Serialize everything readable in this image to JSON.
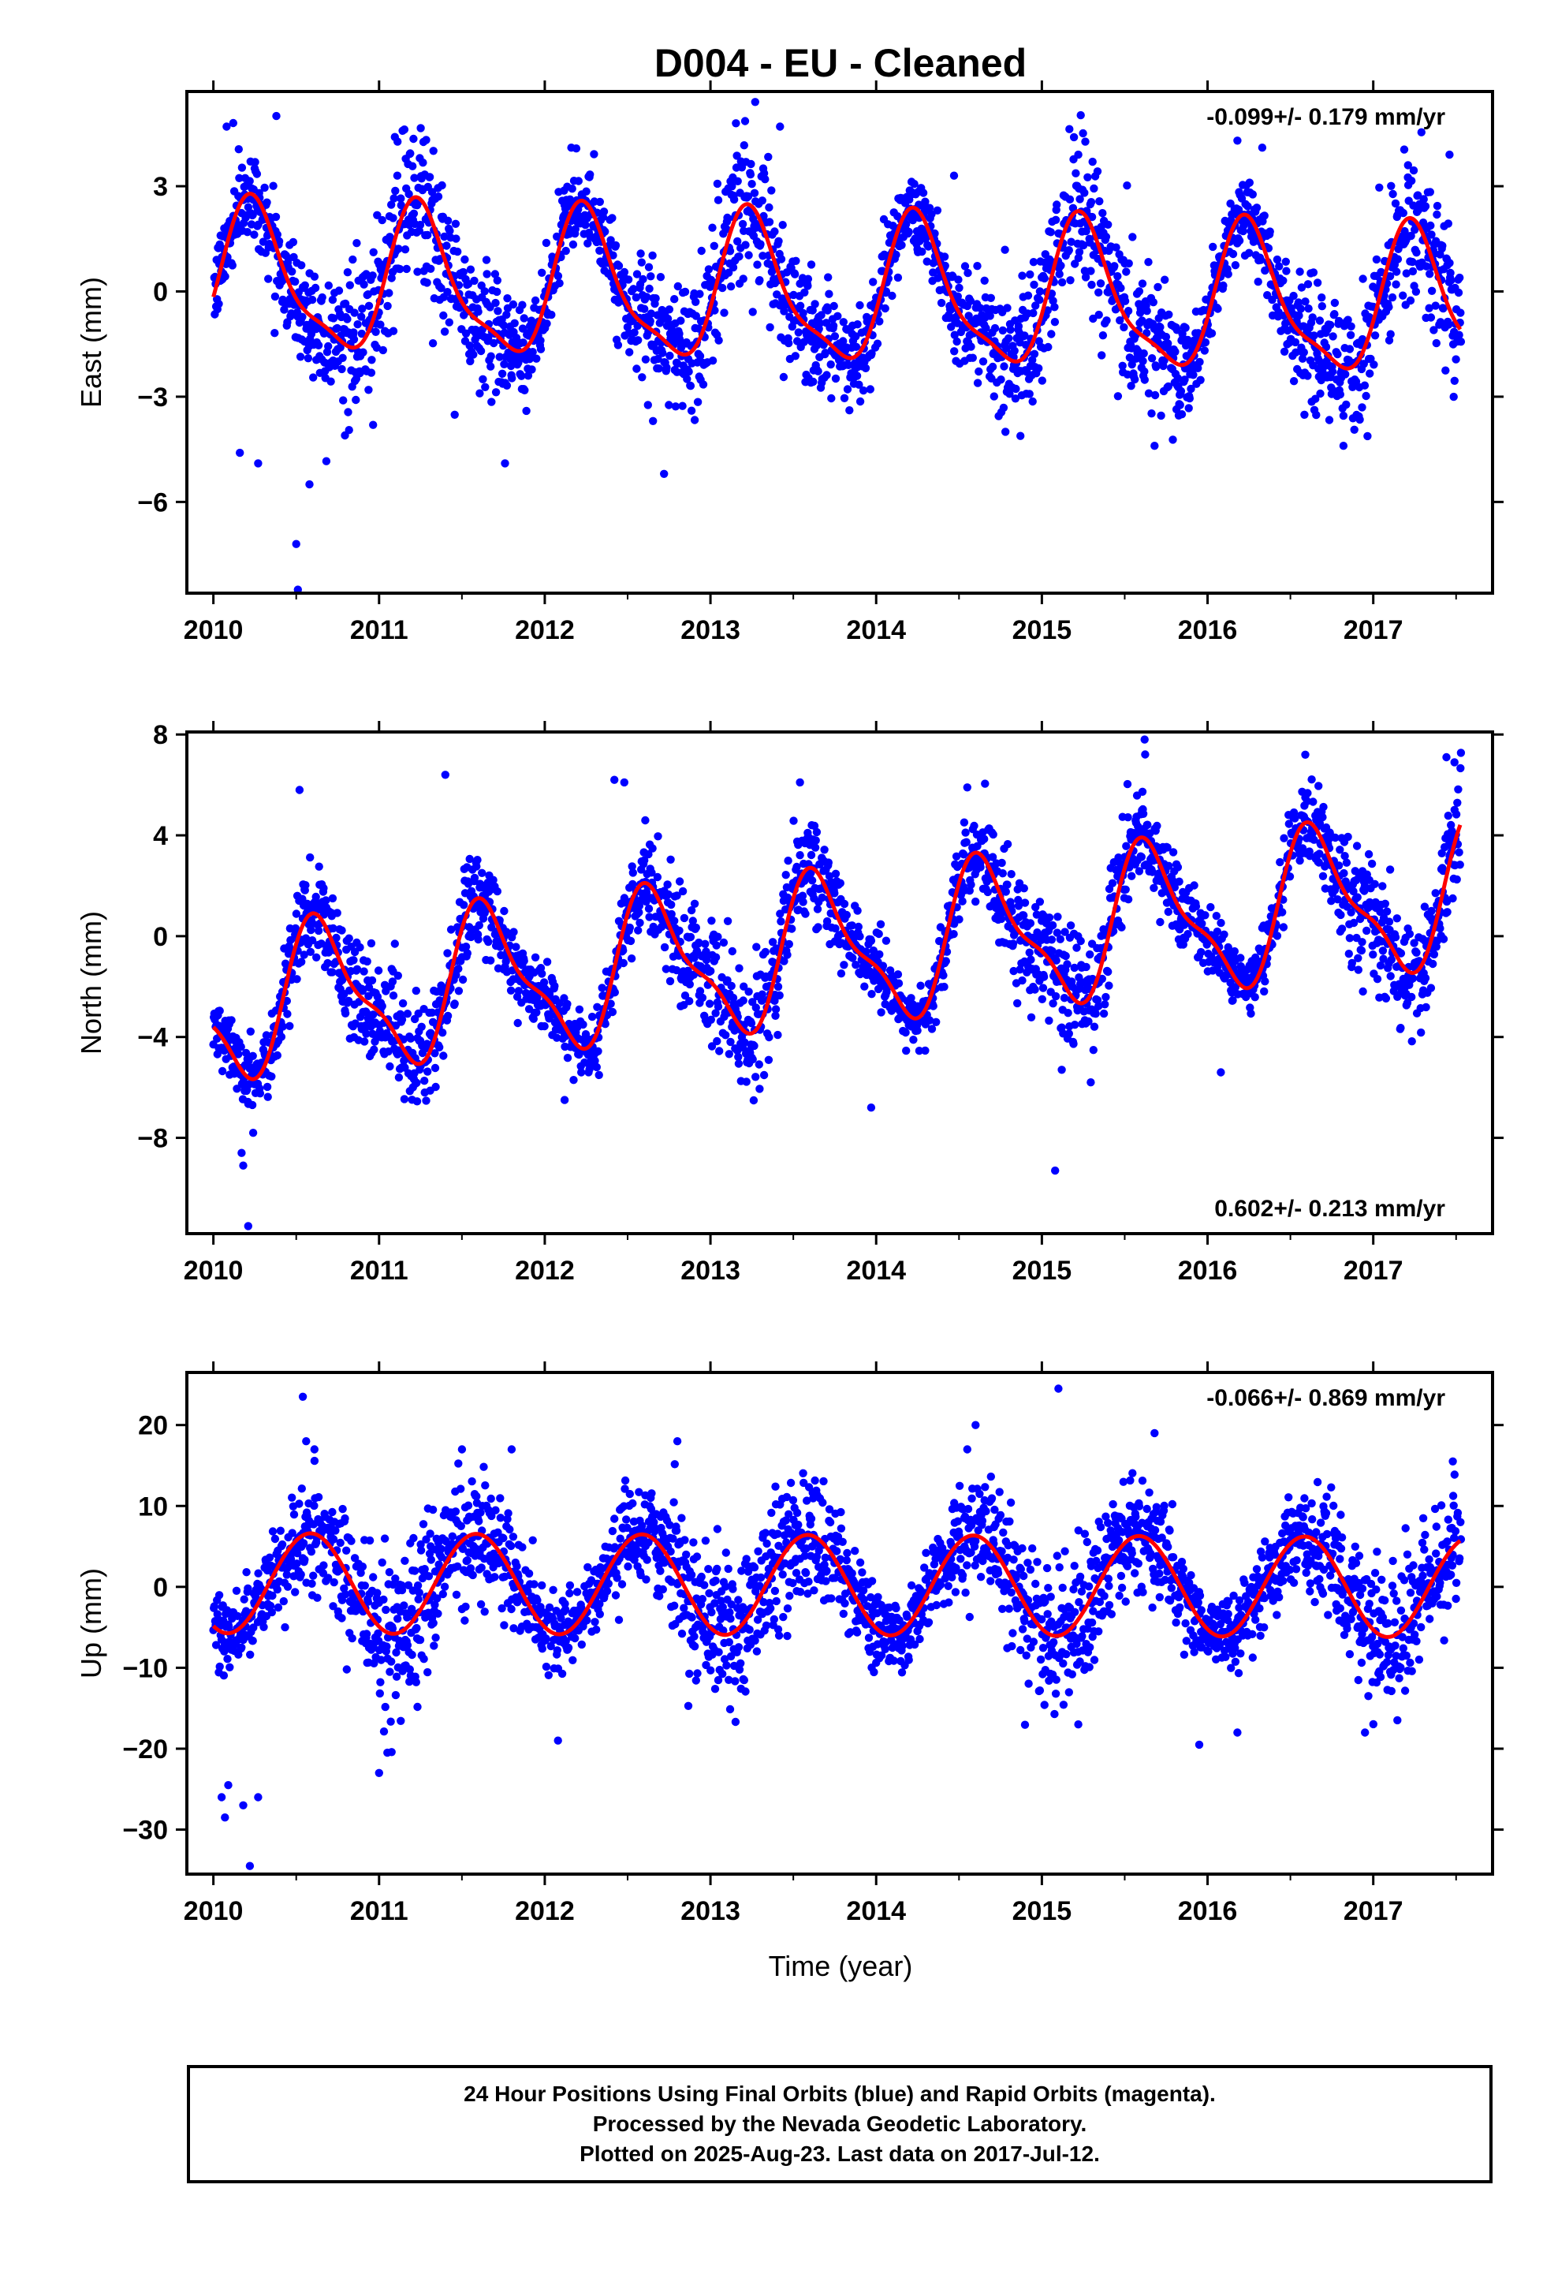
{
  "title": "D004  - EU - Cleaned",
  "colors": {
    "points": "#0000ff",
    "model": "#ff0000",
    "frame": "#000000"
  },
  "xaxis": {
    "label": "Time (year)",
    "range": [
      2009.84,
      2017.72
    ],
    "ticks": [
      2010,
      2011,
      2012,
      2013,
      2014,
      2015,
      2016,
      2017
    ]
  },
  "chart_data": [
    {
      "type": "scatter",
      "component": "east",
      "ylabel": "East (mm)",
      "ylim": [
        -8.6,
        5.7
      ],
      "yticks": [
        -6,
        -3,
        0,
        3
      ],
      "ytick_labels": [
        "−6",
        "−3",
        "0",
        "3"
      ],
      "rate_label": "-0.099+/- 0.179 mm/yr",
      "rate_placement": "top-right",
      "model": {
        "offset": -0.1,
        "trend": -0.099,
        "ann_sin": 2.0,
        "ann_cos": 0.0,
        "semi_sin": 0.35,
        "semi_cos": -0.45
      },
      "noise_sd": 1.0,
      "outliers": [
        {
          "x": 2010.08,
          "y": 4.7
        },
        {
          "x": 2010.12,
          "y": 4.8
        },
        {
          "x": 2010.38,
          "y": 5.0
        },
        {
          "x": 2010.16,
          "y": -4.6
        },
        {
          "x": 2010.27,
          "y": -4.9
        },
        {
          "x": 2010.5,
          "y": -7.2
        },
        {
          "x": 2010.51,
          "y": -8.5
        },
        {
          "x": 2010.58,
          "y": -5.5
        },
        {
          "x": 2011.11,
          "y": 3.3
        },
        {
          "x": 2011.76,
          "y": -4.9
        },
        {
          "x": 2012.16,
          "y": 4.1
        },
        {
          "x": 2012.72,
          "y": -5.2
        },
        {
          "x": 2013.27,
          "y": 5.4
        },
        {
          "x": 2013.42,
          "y": 4.7
        },
        {
          "x": 2014.47,
          "y": 3.3
        },
        {
          "x": 2015.22,
          "y": 3.9
        },
        {
          "x": 2015.68,
          "y": -4.4
        },
        {
          "x": 2016.18,
          "y": 4.3
        },
        {
          "x": 2016.33,
          "y": 4.1
        },
        {
          "x": 2016.82,
          "y": -4.4
        },
        {
          "x": 2017.21,
          "y": 3.6
        },
        {
          "x": 2017.46,
          "y": 3.9
        }
      ]
    },
    {
      "type": "scatter",
      "component": "north",
      "ylabel": "North (mm)",
      "ylim": [
        -11.8,
        8.1
      ],
      "yticks": [
        -8,
        -4,
        0,
        4,
        8
      ],
      "ytick_labels": [
        "−8",
        "−4",
        "0",
        "4",
        "8"
      ],
      "rate_label": "0.602+/- 0.213 mm/yr",
      "rate_placement": "bottom-right",
      "model": {
        "offset": -0.4,
        "trend": 0.602,
        "ann_sin": -2.3,
        "ann_cos": -1.5,
        "semi_sin": 0.6,
        "semi_cos": 0.7
      },
      "noise_sd": 1.1,
      "outliers": [
        {
          "x": 2010.17,
          "y": -8.6
        },
        {
          "x": 2010.18,
          "y": -9.1
        },
        {
          "x": 2010.21,
          "y": -11.5
        },
        {
          "x": 2010.24,
          "y": -7.8
        },
        {
          "x": 2010.52,
          "y": 5.8
        },
        {
          "x": 2011.4,
          "y": 6.4
        },
        {
          "x": 2012.12,
          "y": -6.5
        },
        {
          "x": 2012.42,
          "y": 6.2
        },
        {
          "x": 2012.48,
          "y": 6.1
        },
        {
          "x": 2013.54,
          "y": 6.1
        },
        {
          "x": 2013.97,
          "y": -6.8
        },
        {
          "x": 2014.55,
          "y": 5.9
        },
        {
          "x": 2015.08,
          "y": -9.3
        },
        {
          "x": 2015.12,
          "y": -5.3
        },
        {
          "x": 2015.62,
          "y": 7.8
        },
        {
          "x": 2016.08,
          "y": -5.4
        },
        {
          "x": 2016.59,
          "y": 7.2
        },
        {
          "x": 2017.49,
          "y": 6.9
        }
      ]
    },
    {
      "type": "scatter",
      "component": "up",
      "ylabel": "Up (mm)",
      "ylim": [
        -35.5,
        26.5
      ],
      "yticks": [
        -30,
        -20,
        -10,
        0,
        10,
        20
      ],
      "ytick_labels": [
        "−30",
        "−20",
        "−10",
        "0",
        "10",
        "20"
      ],
      "rate_label": "-0.066+/- 0.869 mm/yr",
      "rate_placement": "top-right",
      "model": {
        "offset": 0.2,
        "trend": -0.066,
        "ann_sin": -3.2,
        "ann_cos": -5.3,
        "semi_sin": 0.0,
        "semi_cos": 0.0
      },
      "noise_sd": 4.2,
      "outliers": [
        {
          "x": 2010.05,
          "y": -26
        },
        {
          "x": 2010.07,
          "y": -28.5
        },
        {
          "x": 2010.09,
          "y": -24.5
        },
        {
          "x": 2010.18,
          "y": -27
        },
        {
          "x": 2010.22,
          "y": -34.5
        },
        {
          "x": 2010.27,
          "y": -26
        },
        {
          "x": 2010.54,
          "y": 23.5
        },
        {
          "x": 2010.56,
          "y": 18
        },
        {
          "x": 2010.61,
          "y": 17
        },
        {
          "x": 2011.0,
          "y": -23
        },
        {
          "x": 2011.05,
          "y": -20.5
        },
        {
          "x": 2011.5,
          "y": 17
        },
        {
          "x": 2011.8,
          "y": 17
        },
        {
          "x": 2012.08,
          "y": -19
        },
        {
          "x": 2012.8,
          "y": 18
        },
        {
          "x": 2014.55,
          "y": 17
        },
        {
          "x": 2014.6,
          "y": 20
        },
        {
          "x": 2015.1,
          "y": 24.5
        },
        {
          "x": 2015.22,
          "y": -17
        },
        {
          "x": 2015.68,
          "y": 19
        },
        {
          "x": 2015.95,
          "y": -19.5
        },
        {
          "x": 2016.18,
          "y": -18
        },
        {
          "x": 2016.95,
          "y": -18
        },
        {
          "x": 2017.48,
          "y": 15.5
        }
      ]
    }
  ],
  "footer": {
    "line1": "24 Hour Positions Using Final Orbits (blue) and Rapid Orbits (magenta).",
    "line2": "Processed by the Nevada Geodetic Laboratory.",
    "line3": "Plotted on 2025-Aug-23. Last data on 2017-Jul-12."
  }
}
